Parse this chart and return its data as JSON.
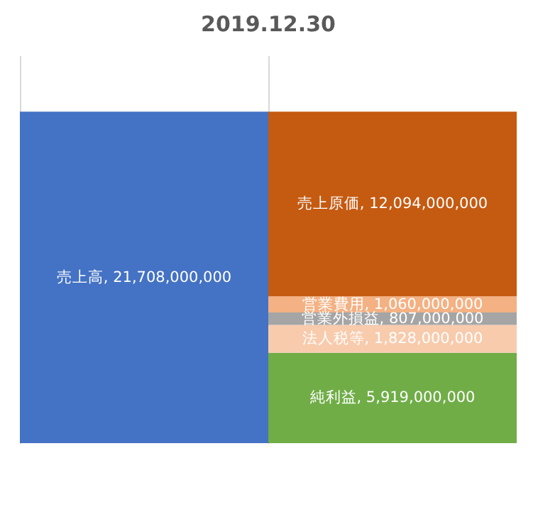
{
  "chart_data": {
    "type": "bar",
    "title": "2019.12.30",
    "categories": [
      null,
      null
    ],
    "stacked": true,
    "tick_labels": false,
    "grid": "x",
    "series": [
      {
        "color": "#4472c4",
        "values": [
          21708000000,
          null
        ],
        "value_labels": [
          "売上高, 21,708,000,000",
          null
        ]
      },
      {
        "color": "#70ad47",
        "values": [
          null,
          5919000000
        ],
        "value_labels": [
          null,
          "純利益, 5,919,000,000"
        ]
      },
      {
        "color": "#f8cbad",
        "values": [
          null,
          1828000000
        ],
        "value_labels": [
          null,
          "法人税等, 1,828,000,000"
        ]
      },
      {
        "color": "#a5a5a5",
        "values": [
          null,
          807000000
        ],
        "value_labels": [
          null,
          "営業外損益, 807,000,000"
        ]
      },
      {
        "color": "#f4b183",
        "values": [
          null,
          1060000000
        ],
        "value_labels": [
          null,
          "営業費用, 1,060,000,000"
        ]
      },
      {
        "color": "#c55a11",
        "values": [
          null,
          12094000000
        ],
        "value_labels": [
          null,
          "売上原価, 12,094,000,000"
        ]
      }
    ]
  }
}
